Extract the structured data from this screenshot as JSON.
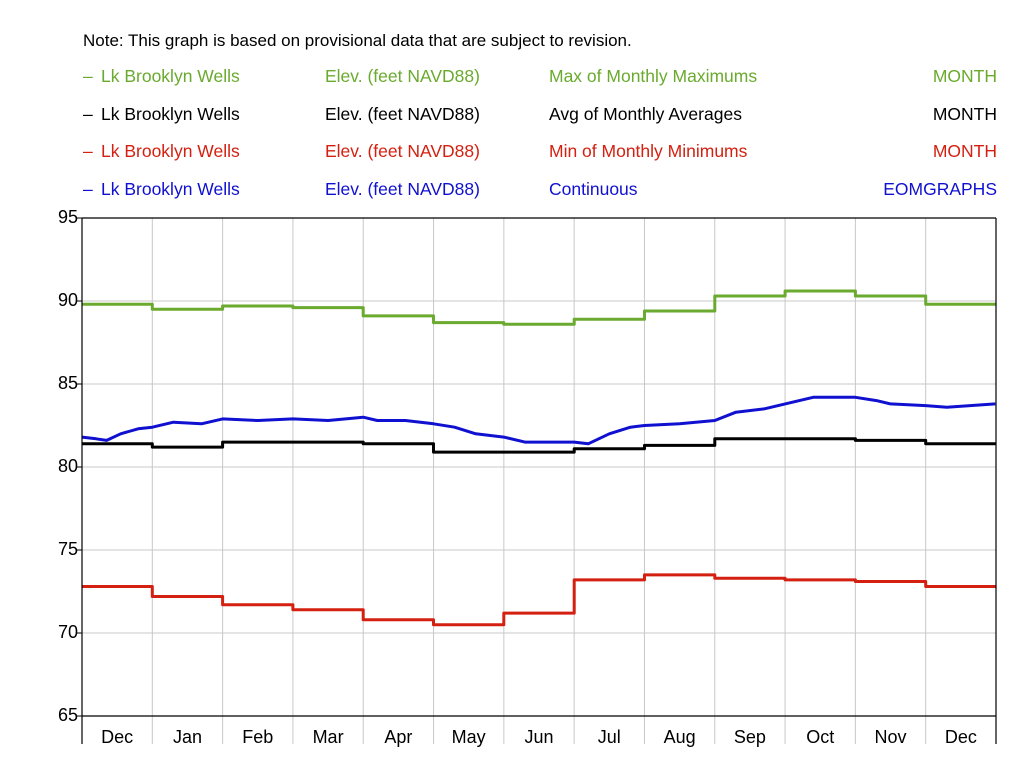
{
  "note": "Note: This graph is based on provisional data that are subject to revision.",
  "legend": [
    {
      "dash": "–",
      "site": "Lk Brooklyn Wells",
      "parameter": "Elev. (feet NAVD88)",
      "statistic": "Max of Monthly Maximums",
      "source": "MONTH",
      "color": "#6aaa2e"
    },
    {
      "dash": "–",
      "site": "Lk Brooklyn Wells",
      "parameter": "Elev. (feet NAVD88)",
      "statistic": "Avg of Monthly Averages",
      "source": "MONTH",
      "color": "#000000"
    },
    {
      "dash": "–",
      "site": "Lk Brooklyn Wells",
      "parameter": "Elev. (feet NAVD88)",
      "statistic": "Min of Monthly Minimums",
      "source": "MONTH",
      "color": "#d42010"
    },
    {
      "dash": "–",
      "site": "Lk Brooklyn Wells",
      "parameter": "Elev. (feet NAVD88)",
      "statistic": "Continuous",
      "source": "EOMGRAPHS",
      "color": "#1010d0"
    }
  ],
  "chart_data": {
    "type": "line",
    "categories": [
      "Dec",
      "Jan",
      "Feb",
      "Mar",
      "Apr",
      "May",
      "Jun",
      "Jul",
      "Aug",
      "Sep",
      "Oct",
      "Nov",
      "Dec"
    ],
    "ylim": [
      65,
      95
    ],
    "yticks": [
      "95",
      "90",
      "85",
      "80",
      "75",
      "70",
      "65"
    ],
    "grid": true,
    "series": [
      {
        "name": "Max of Monthly Maximums",
        "color": "#6aaa2e",
        "step": true,
        "values": [
          89.8,
          89.5,
          89.7,
          89.6,
          89.1,
          88.7,
          88.6,
          88.9,
          89.4,
          90.3,
          90.6,
          90.3,
          89.8
        ]
      },
      {
        "name": "Avg of Monthly Averages",
        "color": "#000000",
        "step": true,
        "values": [
          81.4,
          81.2,
          81.5,
          81.5,
          81.4,
          80.9,
          80.9,
          81.1,
          81.3,
          81.7,
          81.7,
          81.6,
          81.4
        ]
      },
      {
        "name": "Min of Monthly Minimums",
        "color": "#d42010",
        "step": true,
        "values": [
          72.8,
          72.2,
          71.7,
          71.4,
          70.8,
          70.5,
          71.2,
          73.2,
          73.5,
          73.3,
          73.2,
          73.1,
          72.8
        ]
      },
      {
        "name": "Continuous",
        "color": "#1010d0",
        "step": false,
        "x": [
          0.0,
          0.2,
          0.35,
          0.55,
          0.8,
          1.0,
          1.3,
          1.7,
          2.0,
          2.5,
          3.0,
          3.5,
          4.0,
          4.2,
          4.6,
          5.0,
          5.3,
          5.6,
          6.0,
          6.3,
          6.6,
          7.0,
          7.2,
          7.5,
          7.8,
          8.0,
          8.5,
          9.0,
          9.3,
          9.7,
          10.0,
          10.4,
          10.8,
          11.0,
          11.3,
          11.5,
          12.0,
          12.3,
          12.99
        ],
        "values": [
          81.8,
          81.7,
          81.6,
          82.0,
          82.3,
          82.4,
          82.7,
          82.6,
          82.9,
          82.8,
          82.9,
          82.8,
          83.0,
          82.8,
          82.8,
          82.6,
          82.4,
          82.0,
          81.8,
          81.5,
          81.5,
          81.5,
          81.4,
          82.0,
          82.4,
          82.5,
          82.6,
          82.8,
          83.3,
          83.5,
          83.8,
          84.2,
          84.2,
          84.2,
          84.0,
          83.8,
          83.7,
          83.6,
          83.8
        ]
      }
    ]
  }
}
